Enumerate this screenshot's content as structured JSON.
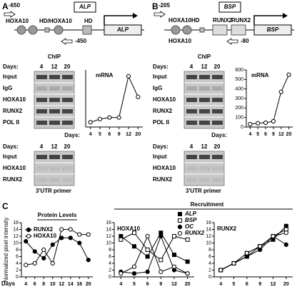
{
  "figure": {
    "a": {
      "label": "A",
      "gene": "ALP",
      "upstream": "-650",
      "downstream": "-450",
      "sites": [
        "HOXA10",
        "HD/HOXA10",
        "HD"
      ],
      "chip": {
        "title": "ChIP",
        "days_label": "Days:",
        "days": [
          "4",
          "12",
          "20"
        ],
        "rows": [
          "Input",
          "IgG",
          "HOXA10",
          "RUNX2",
          "POL II"
        ]
      },
      "utr": {
        "days_label": "Days:",
        "days": [
          "4",
          "12",
          "20"
        ],
        "rows": [
          "Input",
          "HOXA10",
          "RUNX2"
        ],
        "caption": "3'UTR primer"
      }
    },
    "b": {
      "label": "B",
      "gene": "BSP",
      "upstream": "-205",
      "downstream": "-80",
      "sites": [
        "HOXA10HD",
        "RUNX2",
        "RUNX2",
        "HOXA10"
      ],
      "chip": {
        "title": "ChIP",
        "days_label": "Days:",
        "days": [
          "4",
          "12",
          "20"
        ],
        "rows": [
          "Input",
          "IgG",
          "HOXA10",
          "RUNX2",
          "POL II"
        ]
      },
      "utr": {
        "days_label": "Days:",
        "days": [
          "4",
          "12",
          "20"
        ],
        "rows": [
          "Input",
          "HOXA10",
          "RUNX2"
        ],
        "caption": "3'UTR primer"
      }
    },
    "c": {
      "label": "C",
      "recruitment": "Recruitment"
    }
  },
  "chart_data": [
    {
      "type": "line",
      "title": "mRNA",
      "xlabel": "Days:",
      "categories": [
        "4",
        "5",
        "6",
        "9",
        "12",
        "20"
      ],
      "values": [
        3,
        5,
        6,
        6,
        32,
        19
      ],
      "color": "#000000",
      "marker": "circle",
      "fill": "#ffffff",
      "ylim": [
        0,
        36
      ]
    },
    {
      "type": "line",
      "title": "mRNA",
      "xlabel": "Days:",
      "categories": [
        "4",
        "5",
        "6",
        "9",
        "12",
        "20"
      ],
      "values": [
        30,
        40,
        45,
        60,
        370,
        550
      ],
      "color": "#000000",
      "marker": "circle",
      "fill": "#ffffff",
      "ylim": [
        0,
        600
      ],
      "yticks": [
        0,
        100,
        200,
        300,
        400,
        500,
        600
      ]
    },
    {
      "type": "line",
      "title": "Protein Levels",
      "ylabel": "Normalized pixel intensity",
      "xlabel": "Days",
      "categories": [
        "4",
        "6",
        "8",
        "10",
        "12",
        "14",
        "16",
        "20"
      ],
      "series": [
        {
          "name": "RUNX2",
          "color": "#000000",
          "marker": "circle",
          "fill": "#000000",
          "values": [
            10.5,
            7.5,
            5.5,
            9.5,
            11.5,
            11.5,
            10,
            5
          ]
        },
        {
          "name": "HOXA10",
          "color": "#000000",
          "marker": "circle",
          "fill": "#ffffff",
          "values": [
            3.5,
            4,
            8,
            4,
            14,
            14,
            12.5,
            12.5
          ]
        }
      ],
      "ylim": [
        0,
        16
      ],
      "yticks": [
        0,
        2,
        4,
        6,
        8,
        10,
        12,
        14,
        16
      ],
      "legend": "top-left"
    },
    {
      "type": "line",
      "title": "HOXA10",
      "categories": [
        "4",
        "5",
        "6",
        "9",
        "12",
        "20"
      ],
      "series": [
        {
          "name": "ALP",
          "color": "#000000",
          "marker": "square",
          "fill": "#000000",
          "values": [
            12,
            9,
            6,
            13,
            6.5,
            4.5
          ]
        },
        {
          "name": "BSP",
          "color": "#000000",
          "marker": "square",
          "fill": "#ffffff",
          "values": [
            11,
            13,
            8,
            5,
            12,
            11
          ]
        },
        {
          "name": "OC",
          "color": "#000000",
          "marker": "circle",
          "fill": "#000000",
          "values": [
            1.5,
            1,
            1.5,
            12,
            2,
            1
          ]
        },
        {
          "name": "RUNX2",
          "color": "#000000",
          "marker": "circle",
          "fill": "#ffffff",
          "values": [
            1,
            3,
            12,
            1.5,
            3,
            1
          ]
        }
      ],
      "ylim": [
        0,
        16
      ],
      "yticks": [
        0,
        2,
        4,
        6,
        8,
        10,
        12,
        14,
        16
      ],
      "legend": "top-right"
    },
    {
      "type": "line",
      "title": "RUNX2",
      "categories": [
        "4",
        "5",
        "6",
        "9",
        "12",
        "20"
      ],
      "series": [
        {
          "name": "ALP",
          "color": "#000000",
          "marker": "square",
          "fill": "#000000",
          "values": [
            2,
            4,
            6,
            9,
            11,
            15
          ]
        },
        {
          "name": "BSP",
          "color": "#000000",
          "marker": "square",
          "fill": "#ffffff",
          "values": [
            2,
            4,
            7,
            9,
            12,
            14
          ]
        },
        {
          "name": "OC",
          "color": "#000000",
          "marker": "circle",
          "fill": "#000000",
          "values": [
            2,
            4,
            6,
            8,
            12,
            9.5
          ]
        },
        {
          "name": "RUNX2",
          "color": "#000000",
          "marker": "circle",
          "fill": "#ffffff",
          "values": [
            2,
            4,
            7,
            9,
            12,
            13
          ]
        }
      ],
      "ylim": [
        0,
        16
      ],
      "yticks": [
        0,
        2,
        4,
        6,
        8,
        10,
        12,
        14,
        16
      ],
      "legend": false
    }
  ]
}
